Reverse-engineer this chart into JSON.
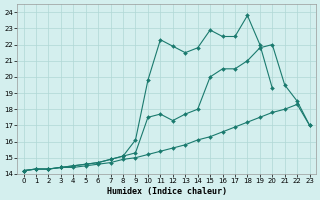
{
  "xlabel": "Humidex (Indice chaleur)",
  "background_color": "#d4efee",
  "grid_color": "#b0d8d5",
  "line_color": "#1a7a6e",
  "xlim": [
    -0.5,
    23.5
  ],
  "ylim": [
    14,
    24.5
  ],
  "yticks": [
    14,
    15,
    16,
    17,
    18,
    19,
    20,
    21,
    22,
    23,
    24
  ],
  "xticks": [
    0,
    1,
    2,
    3,
    4,
    5,
    6,
    7,
    8,
    9,
    10,
    11,
    12,
    13,
    14,
    15,
    16,
    17,
    18,
    19,
    20,
    21,
    22,
    23
  ],
  "line1_x": [
    0,
    1,
    2,
    3,
    4,
    5,
    6,
    7,
    8,
    9,
    10,
    11,
    12,
    13,
    14,
    15,
    16,
    17,
    18,
    19,
    20,
    21,
    22,
    23
  ],
  "line1_y": [
    14.2,
    14.3,
    14.3,
    14.4,
    14.4,
    14.5,
    14.6,
    14.7,
    14.9,
    15.0,
    15.2,
    15.4,
    15.6,
    15.8,
    16.1,
    16.3,
    16.6,
    16.9,
    17.2,
    17.5,
    17.8,
    18.0,
    18.3,
    17.0
  ],
  "line2_x": [
    0,
    1,
    2,
    3,
    4,
    5,
    6,
    7,
    8,
    9,
    10,
    11,
    12,
    13,
    14,
    15,
    16,
    17,
    18,
    19,
    20,
    21,
    22,
    23
  ],
  "line2_y": [
    14.2,
    14.3,
    14.3,
    14.4,
    14.5,
    14.6,
    14.7,
    14.9,
    15.1,
    15.3,
    17.5,
    17.7,
    17.3,
    17.7,
    18.0,
    20.0,
    20.5,
    20.5,
    21.0,
    21.8,
    22.0,
    19.5,
    18.5,
    17.0
  ],
  "line3_x": [
    0,
    1,
    2,
    3,
    4,
    5,
    6,
    7,
    8,
    9,
    10,
    11,
    12,
    13,
    14,
    15,
    16,
    17,
    18,
    19,
    20
  ],
  "line3_y": [
    14.2,
    14.3,
    14.3,
    14.4,
    14.5,
    14.6,
    14.7,
    14.9,
    15.1,
    16.1,
    19.8,
    22.3,
    21.9,
    21.5,
    21.8,
    22.9,
    22.5,
    22.5,
    23.8,
    22.0,
    19.3
  ]
}
